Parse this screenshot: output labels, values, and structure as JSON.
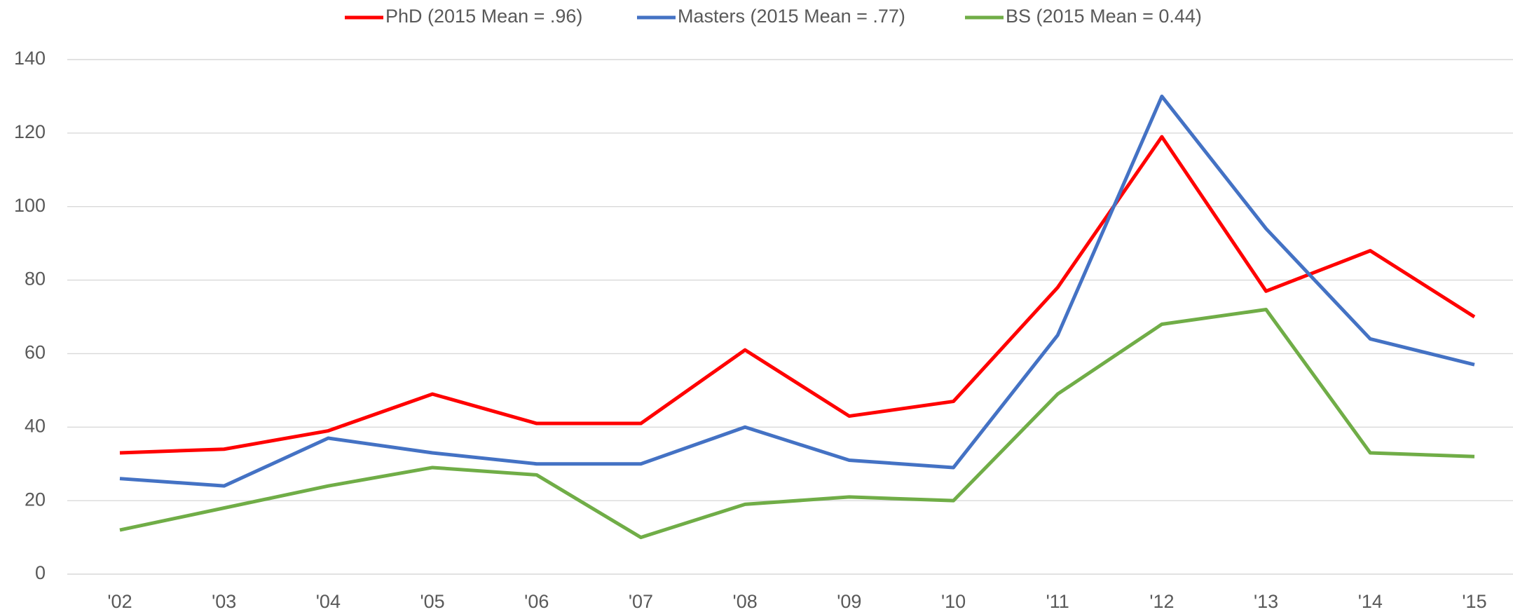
{
  "chart_data": {
    "type": "line",
    "categories": [
      "'02",
      "'03",
      "'04",
      "'05",
      "'06",
      "'07",
      "'08",
      "'09",
      "'10",
      "'11",
      "'12",
      "'13",
      "'14",
      "'15"
    ],
    "series": [
      {
        "name": "PhD (2015 Mean = .96)",
        "color": "#ff0000",
        "values": [
          33,
          34,
          39,
          49,
          41,
          41,
          61,
          43,
          47,
          78,
          119,
          77,
          88,
          70
        ]
      },
      {
        "name": "Masters (2015 Mean = .77)",
        "color": "#4472c4",
        "values": [
          26,
          24,
          37,
          33,
          30,
          30,
          40,
          31,
          29,
          65,
          130,
          94,
          64,
          57
        ]
      },
      {
        "name": "BS (2015 Mean = 0.44)",
        "color": "#70ad47",
        "values": [
          12,
          18,
          24,
          29,
          27,
          10,
          19,
          21,
          20,
          49,
          68,
          72,
          33,
          32
        ]
      }
    ],
    "ylim": [
      0,
      140
    ],
    "yticks": [
      0,
      20,
      40,
      60,
      80,
      100,
      120,
      140
    ],
    "grid": true,
    "legend": "top"
  }
}
